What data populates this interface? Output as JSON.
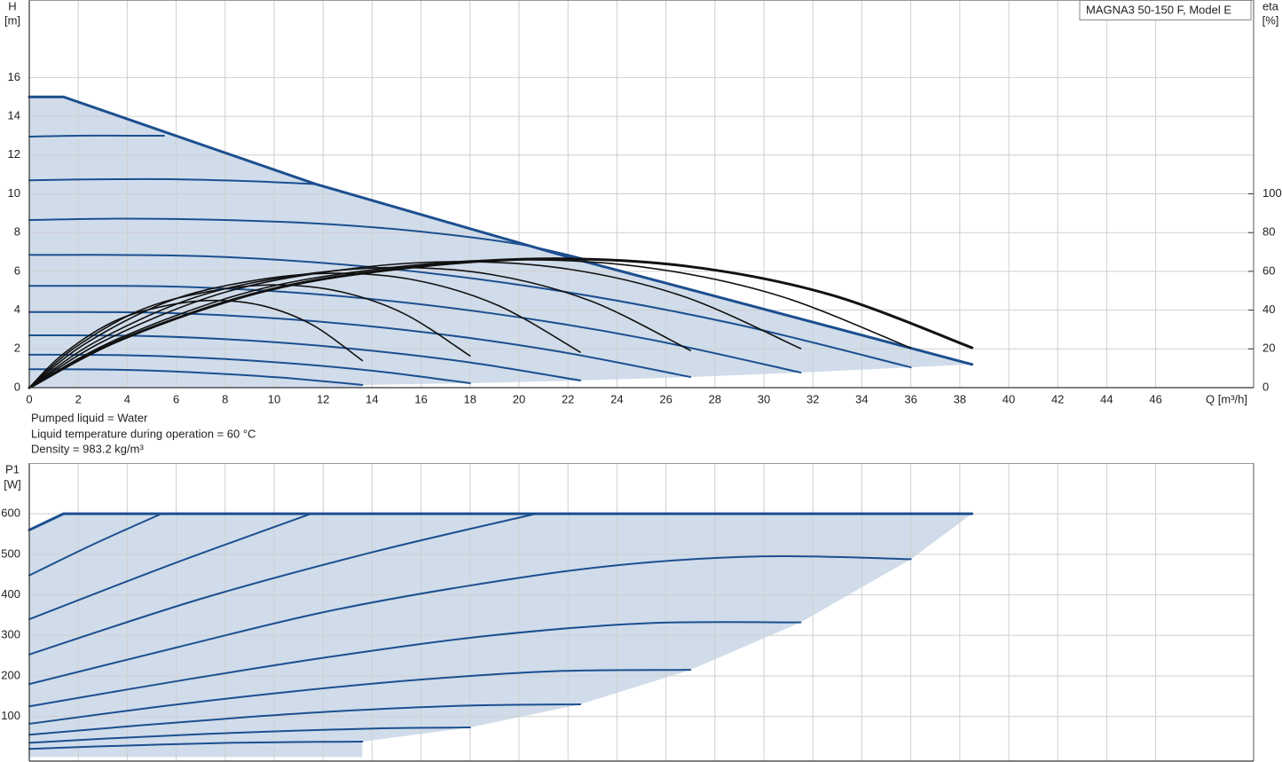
{
  "title": "MAGNA3 50-150 F, Model E",
  "notes": [
    "Pumped liquid = Water",
    "Liquid temperature during operation = 60 °C",
    "Density = 983.2 kg/m³"
  ],
  "chart_data": [
    {
      "type": "line",
      "y_label": "H",
      "y_unit": "[m]",
      "y2_label": "eta",
      "y2_unit": "[%]",
      "x_label": "Q [m³/h]",
      "xlim": [
        0,
        50
      ],
      "xticks": [
        0,
        2,
        4,
        6,
        8,
        10,
        12,
        14,
        16,
        18,
        20,
        22,
        24,
        26,
        28,
        30,
        32,
        34,
        36,
        38,
        40,
        42,
        44,
        46
      ],
      "ylim": [
        0,
        20
      ],
      "yticks": [
        0,
        2,
        4,
        6,
        8,
        10,
        12,
        14,
        16
      ],
      "y2lim": [
        0,
        200
      ],
      "y2ticks": [
        0,
        20,
        40,
        60,
        80,
        100
      ],
      "grid": true,
      "area_color": "#d0dcea",
      "series": [
        {
          "color": "#1c4f8f",
          "line_width": 3,
          "smooth": false,
          "x": [
            0,
            1.4,
            11.7,
            22.2,
            38.5
          ],
          "values": [
            15,
            15,
            10.5,
            6.67,
            1.2
          ]
        },
        {
          "color": "#1c4f8f",
          "line_width": 2,
          "x": [
            0,
            2,
            4,
            5.5
          ],
          "values": [
            12.95,
            13,
            13,
            13
          ]
        },
        {
          "color": "#1c4f8f",
          "line_width": 2,
          "x": [
            0,
            3,
            6,
            9,
            11.7
          ],
          "values": [
            10.7,
            10.75,
            10.75,
            10.65,
            10.5
          ]
        },
        {
          "color": "#1c4f8f",
          "line_width": 2,
          "x": [
            0,
            4,
            8,
            12,
            16,
            20,
            22.8
          ],
          "values": [
            8.65,
            8.72,
            8.65,
            8.45,
            8.05,
            7.4,
            6.6
          ]
        },
        {
          "color": "#1c4f8f",
          "line_width": 2,
          "x": [
            0,
            7.2,
            14.4,
            21.6,
            28.8,
            36
          ],
          "values": [
            6.85,
            6.78,
            6.17,
            5.0,
            3.29,
            1.05
          ]
        },
        {
          "color": "#1c4f8f",
          "line_width": 2,
          "x": [
            0,
            6.3,
            12.6,
            18.9,
            25.2,
            31.5
          ],
          "values": [
            5.25,
            5.2,
            4.73,
            3.83,
            2.52,
            0.78
          ]
        },
        {
          "color": "#1c4f8f",
          "line_width": 2,
          "x": [
            0,
            5.4,
            10.8,
            16.2,
            21.6,
            27
          ],
          "values": [
            3.9,
            3.86,
            3.51,
            2.85,
            1.87,
            0.55
          ]
        },
        {
          "color": "#1c4f8f",
          "line_width": 2,
          "x": [
            0,
            4.5,
            9,
            13.5,
            18,
            22.5
          ],
          "values": [
            2.7,
            2.67,
            2.43,
            1.97,
            1.3,
            0.37
          ]
        },
        {
          "color": "#1c4f8f",
          "line_width": 2,
          "x": [
            0,
            3.6,
            7.2,
            10.8,
            14.4,
            18
          ],
          "values": [
            1.7,
            1.68,
            1.53,
            1.24,
            0.82,
            0.23
          ]
        },
        {
          "color": "#1c4f8f",
          "line_width": 2,
          "x": [
            0,
            2.72,
            5.44,
            8.16,
            10.88,
            13.6
          ],
          "values": [
            0.95,
            0.94,
            0.86,
            0.69,
            0.46,
            0.14
          ]
        },
        {
          "color": "#111111",
          "line_width": 1.6,
          "axis": "y2",
          "x": [
            0,
            1.36,
            3.4,
            5.44,
            7.48,
            9.52,
            11.56,
            13.6
          ],
          "values": [
            0,
            17.1,
            33.8,
            41.9,
            45,
            42.3,
            32.4,
            14
          ]
        },
        {
          "color": "#111111",
          "line_width": 1.6,
          "axis": "y2",
          "x": [
            0,
            1.8,
            4.5,
            7.2,
            9.9,
            12.6,
            15.3,
            18
          ],
          "values": [
            0,
            20.1,
            39.8,
            49.3,
            53,
            49.8,
            38.2,
            16.4
          ]
        },
        {
          "color": "#111111",
          "line_width": 1.6,
          "axis": "y2",
          "x": [
            0,
            2.25,
            5.63,
            9,
            12.38,
            15.75,
            19.13,
            22.5
          ],
          "values": [
            0,
            22.4,
            44.3,
            54.9,
            59,
            55.5,
            42.5,
            18.3
          ]
        },
        {
          "color": "#111111",
          "line_width": 1.6,
          "axis": "y2",
          "x": [
            0,
            2.7,
            6.75,
            10.8,
            14.85,
            18.9,
            22.95,
            27
          ],
          "values": [
            0,
            23.6,
            46.5,
            57.7,
            62,
            58.3,
            44.6,
            19.2
          ]
        },
        {
          "color": "#111111",
          "line_width": 1.6,
          "axis": "y2",
          "x": [
            0,
            3.15,
            7.88,
            12.6,
            17.33,
            22.05,
            26.78,
            31.5
          ],
          "values": [
            0,
            24.7,
            48.8,
            60.5,
            65,
            61.1,
            46.8,
            20.2
          ]
        },
        {
          "color": "#111111",
          "line_width": 1.6,
          "axis": "y2",
          "x": [
            0,
            3.6,
            9,
            14.4,
            19.8,
            25.2,
            30.6,
            36
          ],
          "values": [
            0,
            25.1,
            49.5,
            61.4,
            66,
            62,
            47.5,
            20.5
          ]
        },
        {
          "color": "#111111",
          "line_width": 3,
          "axis": "y2",
          "x": [
            0,
            3.85,
            9.63,
            15.4,
            21.18,
            26.95,
            32.73,
            38.5
          ],
          "values": [
            0,
            25.3,
            49.9,
            61.8,
            66.5,
            62.5,
            47.9,
            20.6
          ]
        }
      ]
    },
    {
      "type": "line",
      "y_label": "P1",
      "y_unit": "[W]",
      "xlim": [
        0,
        50
      ],
      "xticks": [
        0,
        2,
        4,
        6,
        8,
        10,
        12,
        14,
        16,
        18,
        20,
        22,
        24,
        26,
        28,
        30,
        32,
        34,
        36,
        38,
        40,
        42,
        44,
        46
      ],
      "xtick_labels": false,
      "ylim": [
        -10,
        725
      ],
      "yticks": [
        100,
        200,
        300,
        400,
        500,
        600
      ],
      "grid": true,
      "area_color": "#d0dcea",
      "series": [
        {
          "color": "#1c4f8f",
          "line_width": 3,
          "smooth": false,
          "x": [
            0,
            1.4,
            38.5
          ],
          "values": [
            560,
            600,
            600
          ]
        },
        {
          "color": "#1c4f8f",
          "line_width": 2,
          "x": [
            0,
            2.7,
            5.4
          ],
          "values": [
            448,
            527,
            600
          ]
        },
        {
          "color": "#1c4f8f",
          "line_width": 2,
          "x": [
            0,
            5.8,
            11.5
          ],
          "values": [
            340,
            475,
            600
          ]
        },
        {
          "color": "#1c4f8f",
          "line_width": 2,
          "x": [
            0,
            7,
            14,
            20.7
          ],
          "values": [
            253,
            390,
            505,
            600
          ]
        },
        {
          "color": "#1c4f8f",
          "line_width": 2,
          "x": [
            0,
            6,
            12,
            18,
            24,
            30,
            36
          ],
          "values": [
            180,
            270,
            357,
            423,
            473,
            495,
            488
          ]
        },
        {
          "color": "#1c4f8f",
          "line_width": 2,
          "x": [
            0,
            6.3,
            12.6,
            18.9,
            25.2,
            31.5
          ],
          "values": [
            125,
            190,
            250,
            300,
            330,
            332
          ]
        },
        {
          "color": "#1c4f8f",
          "line_width": 2,
          "x": [
            0,
            5.4,
            10.8,
            16.2,
            21.6,
            27
          ],
          "values": [
            82,
            125,
            162,
            192,
            212,
            215
          ]
        },
        {
          "color": "#1c4f8f",
          "line_width": 2,
          "x": [
            0,
            4.5,
            9,
            13.5,
            18,
            22.5
          ],
          "values": [
            55,
            78,
            99,
            116,
            127,
            130
          ]
        },
        {
          "color": "#1c4f8f",
          "line_width": 2,
          "x": [
            0,
            3.6,
            7.2,
            10.8,
            14.4,
            18
          ],
          "values": [
            35,
            47,
            57,
            65,
            71,
            73
          ]
        },
        {
          "color": "#1c4f8f",
          "line_width": 2,
          "x": [
            0,
            2.72,
            5.44,
            8.16,
            10.88,
            13.6
          ],
          "values": [
            20,
            26,
            31,
            35,
            37,
            38
          ]
        }
      ]
    }
  ]
}
